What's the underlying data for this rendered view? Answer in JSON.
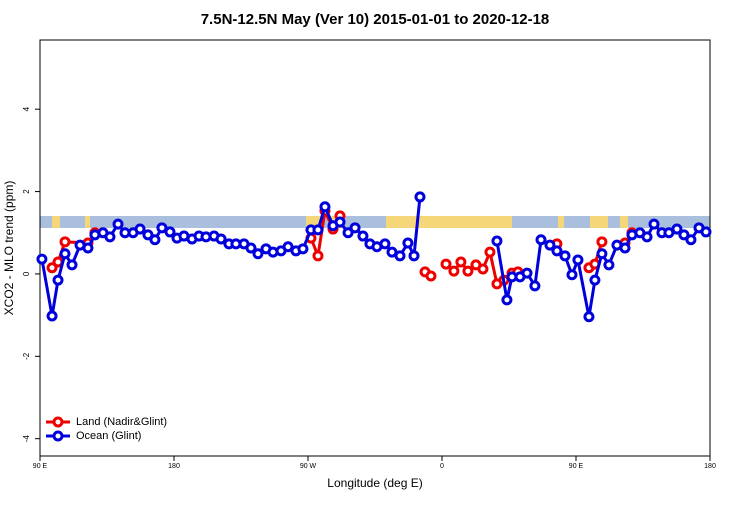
{
  "chart_data": {
    "type": "line",
    "title": "7.5N-12.5N May (Ver 10)   2015-01-01 to 2020-12-18",
    "x_label": "Longitude (deg E)",
    "y_label": "XCO2 - MLO trend (ppm)",
    "xlim": [
      90,
      540
    ],
    "ylim": [
      -4.42,
      5.68
    ],
    "xticks": [
      {
        "value": 90,
        "label": "90 E"
      },
      {
        "value": 180,
        "label": "180"
      },
      {
        "value": 270,
        "label": "90 W"
      },
      {
        "value": 360,
        "label": "0"
      },
      {
        "value": 450,
        "label": "90 E"
      },
      {
        "value": 540,
        "label": "180"
      }
    ],
    "yticks": [
      -4,
      -2,
      0,
      2,
      4
    ],
    "legend": "bottom-left",
    "series": [
      {
        "name": "Land (Nadir&Glint)",
        "color": "#ee0000",
        "x": [
          98.1,
          102.1,
          106.8,
          122.2,
          126.9,
          null,
          272.0,
          276.7,
          281.4,
          286.8,
          291.5,
          null,
          348.6,
          352.6,
          null,
          362.7,
          368.0,
          372.7,
          377.4,
          382.8,
          387.5,
          392.2,
          396.9,
          401.6,
          407.0,
          411.0,
          null,
          437.2,
          null,
          458.7,
          462.7,
          467.4,
          null,
          482.9,
          487.6
        ],
        "values": [
          0.15,
          0.29,
          0.78,
          0.75,
          1.0,
          null,
          0.87,
          0.44,
          1.53,
          1.09,
          1.41,
          null,
          0.05,
          -0.05,
          null,
          0.24,
          0.07,
          0.29,
          0.07,
          0.22,
          0.12,
          0.53,
          -0.24,
          -0.15,
          0.02,
          0.05,
          null,
          0.73,
          null,
          0.15,
          0.24,
          0.78,
          null,
          0.75,
          1.0
        ]
      },
      {
        "name": "Ocean (Glint)",
        "color": "#0000dd",
        "x": [
          91.3,
          98.1,
          102.1,
          106.8,
          111.5,
          116.9,
          122.2,
          126.9,
          132.3,
          137.0,
          142.4,
          147.1,
          152.5,
          157.2,
          162.5,
          167.2,
          171.9,
          177.3,
          182.0,
          186.7,
          192.1,
          196.8,
          201.5,
          206.9,
          211.6,
          216.9,
          221.6,
          227.0,
          231.7,
          236.4,
          241.8,
          246.5,
          251.9,
          256.6,
          261.9,
          266.6,
          272.0,
          276.7,
          281.4,
          286.8,
          291.5,
          296.9,
          301.6,
          306.9,
          311.6,
          316.3,
          321.7,
          326.4,
          331.8,
          337.1,
          341.2,
          345.2,
          null,
          396.9,
          403.6,
          407.0,
          412.4,
          417.1,
          422.4,
          426.5,
          432.5,
          437.2,
          442.6,
          447.3,
          451.3,
          458.7,
          462.7,
          467.4,
          472.1,
          477.5,
          482.9,
          487.6,
          492.9,
          497.7,
          502.4,
          507.7,
          512.4,
          517.8,
          522.5,
          527.2,
          532.6,
          537.3
        ],
        "values": [
          0.36,
          -1.02,
          -0.15,
          0.49,
          0.22,
          0.7,
          0.63,
          0.95,
          1.0,
          0.9,
          1.21,
          1.0,
          1.0,
          1.09,
          0.95,
          0.83,
          1.12,
          1.02,
          0.87,
          0.92,
          0.85,
          0.92,
          0.9,
          0.92,
          0.85,
          0.73,
          0.73,
          0.73,
          0.63,
          0.49,
          0.61,
          0.53,
          0.56,
          0.66,
          0.56,
          0.61,
          1.07,
          1.07,
          1.63,
          1.17,
          1.26,
          1.0,
          1.12,
          0.92,
          0.73,
          0.66,
          0.73,
          0.53,
          0.44,
          0.75,
          0.44,
          1.87,
          null,
          0.8,
          -0.63,
          -0.07,
          -0.07,
          0.02,
          -0.29,
          0.83,
          0.7,
          0.56,
          0.44,
          -0.02,
          0.34,
          -1.04,
          -0.15,
          0.49,
          0.22,
          0.7,
          0.63,
          0.95,
          1.0,
          0.9,
          1.21,
          1.0,
          1.0,
          1.09,
          0.95,
          0.83,
          1.12,
          1.02
        ]
      }
    ]
  }
}
